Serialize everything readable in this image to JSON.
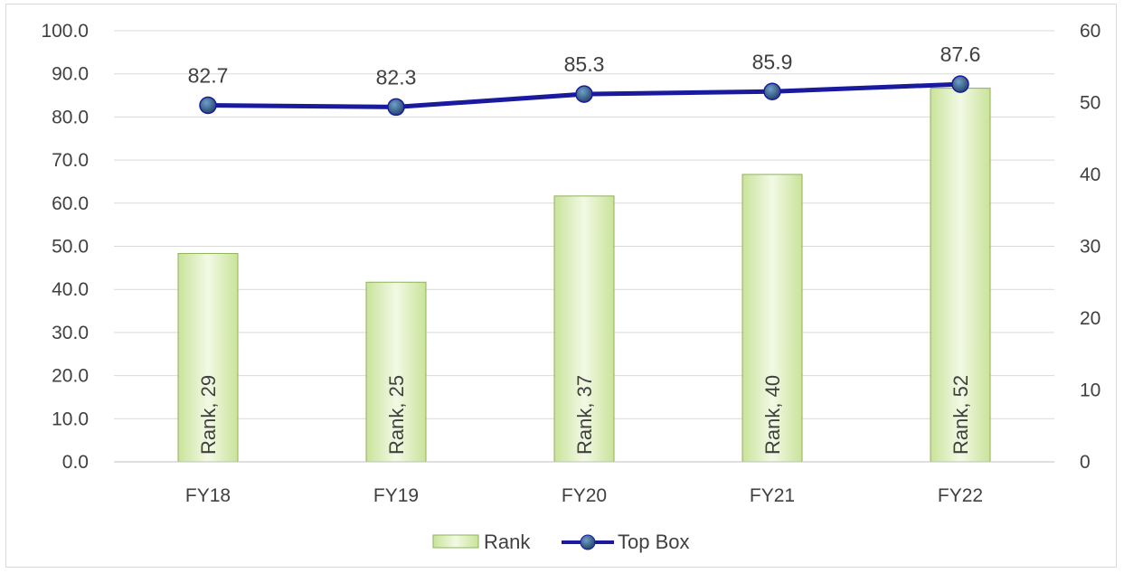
{
  "chart_data": {
    "type": "bar",
    "categories": [
      "FY18",
      "FY19",
      "FY20",
      "FY21",
      "FY22"
    ],
    "series": [
      {
        "name": "Rank",
        "type": "bar",
        "axis": "right",
        "values": [
          29,
          25,
          37,
          40,
          52
        ],
        "data_labels": [
          "Rank, 29",
          "Rank, 25",
          "Rank, 37",
          "Rank, 40",
          "Rank, 52"
        ]
      },
      {
        "name": "Top Box",
        "type": "line",
        "axis": "left",
        "values": [
          82.7,
          82.3,
          85.3,
          85.9,
          87.6
        ],
        "data_labels": [
          "82.7",
          "82.3",
          "85.3",
          "85.9",
          "87.6"
        ]
      }
    ],
    "ylim": [
      0,
      100
    ],
    "y_ticks": [
      "0.0",
      "10.0",
      "20.0",
      "30.0",
      "40.0",
      "50.0",
      "60.0",
      "70.0",
      "80.0",
      "90.0",
      "100.0"
    ],
    "y2lim": [
      0,
      60
    ],
    "y2_ticks": [
      "0",
      "10",
      "20",
      "30",
      "40",
      "50",
      "60"
    ],
    "grid": true,
    "legend_position": "bottom",
    "legend": [
      "Rank",
      "Top Box"
    ],
    "colors": {
      "bar_fill_light": "#f2f9e4",
      "bar_fill_dark": "#c9e39a",
      "bar_stroke": "#8db35a",
      "line": "#1a1a9e",
      "marker": "#2b4f7a",
      "grid": "#d9d9d9",
      "text": "#404040"
    }
  }
}
